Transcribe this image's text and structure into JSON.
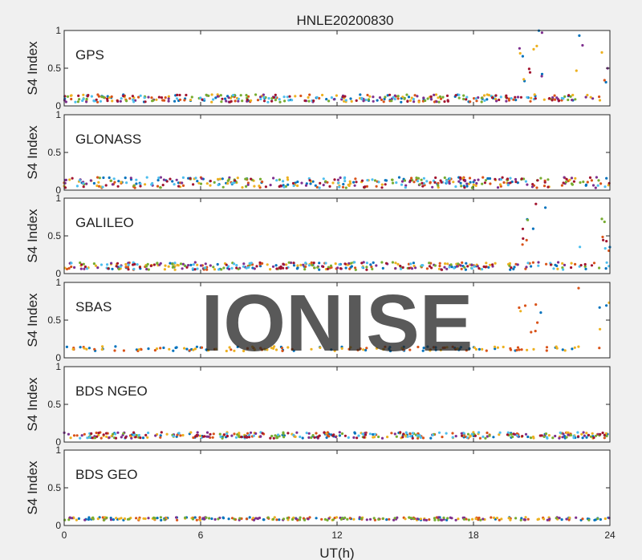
{
  "figure": {
    "title": "HNLE20200830",
    "xlabel": "UT(h)",
    "ylabel": "S4 Index",
    "watermark": "IONISE",
    "colors": {
      "background": "#f0f0f0",
      "axes_bg": "#ffffff",
      "axis": "#262626",
      "watermark": "#dcdcdc"
    },
    "palette": [
      "#0072bd",
      "#d95319",
      "#edb120",
      "#7e2f8e",
      "#77ac30",
      "#4dbeee",
      "#a2142f"
    ]
  },
  "chart_data": [
    {
      "type": "scatter",
      "panel": "GPS",
      "title": "GPS",
      "xlabel": "",
      "ylabel": "S4 Index",
      "xlim": [
        0,
        24
      ],
      "ylim": [
        0,
        1
      ],
      "xticks": [
        0,
        6,
        12,
        18,
        24
      ],
      "yticks": [
        0,
        0.5,
        1
      ],
      "show_xtick_labels": false,
      "grid": false,
      "baseline": 0.1,
      "spread": 0.05,
      "enhanced_windows": [
        [
          20.0,
          20.5,
          0.3,
          0.8
        ],
        [
          20.6,
          21.3,
          0.3,
          1.0
        ],
        [
          22.5,
          22.9,
          0.2,
          1.0
        ],
        [
          23.6,
          24.0,
          0.3,
          0.75
        ]
      ],
      "series_count": 7
    },
    {
      "type": "scatter",
      "panel": "GLONASS",
      "title": "GLONASS",
      "xlabel": "",
      "ylabel": "S4 Index",
      "xlim": [
        0,
        24
      ],
      "ylim": [
        0,
        1
      ],
      "xticks": [
        0,
        6,
        12,
        18,
        24
      ],
      "yticks": [
        0,
        0.5,
        1
      ],
      "show_xtick_labels": false,
      "grid": false,
      "baseline": 0.1,
      "spread": 0.07,
      "enhanced_windows": [],
      "series_count": 7
    },
    {
      "type": "scatter",
      "panel": "GALILEO",
      "title": "GALILEO",
      "xlabel": "",
      "ylabel": "S4 Index",
      "xlim": [
        0,
        24
      ],
      "ylim": [
        0,
        1
      ],
      "xticks": [
        0,
        6,
        12,
        18,
        24
      ],
      "yticks": [
        0,
        0.5,
        1
      ],
      "show_xtick_labels": false,
      "grid": false,
      "baseline": 0.1,
      "spread": 0.05,
      "enhanced_windows": [
        [
          20.0,
          20.5,
          0.3,
          0.8
        ],
        [
          20.6,
          21.3,
          0.3,
          1.0
        ],
        [
          22.5,
          22.9,
          0.2,
          1.0
        ],
        [
          23.6,
          24.0,
          0.3,
          0.75
        ]
      ],
      "series_count": 7
    },
    {
      "type": "scatter",
      "panel": "SBAS",
      "title": "SBAS",
      "xlabel": "",
      "ylabel": "S4 Index",
      "xlim": [
        0,
        24
      ],
      "ylim": [
        0,
        1
      ],
      "xticks": [
        0,
        6,
        12,
        18,
        24
      ],
      "yticks": [
        0,
        0.5,
        1
      ],
      "show_xtick_labels": false,
      "grid": false,
      "baseline": 0.12,
      "spread": 0.03,
      "enhanced_windows": [
        [
          20.0,
          20.6,
          0.3,
          0.75
        ],
        [
          20.7,
          21.1,
          0.3,
          1.0
        ],
        [
          22.5,
          22.8,
          0.3,
          1.0
        ],
        [
          23.5,
          24.0,
          0.3,
          0.8
        ]
      ],
      "series_count": 3
    },
    {
      "type": "scatter",
      "panel": "BDS NGEO",
      "title": "BDS NGEO",
      "xlabel": "",
      "ylabel": "S4 Index",
      "xlim": [
        0,
        24
      ],
      "ylim": [
        0,
        1
      ],
      "xticks": [
        0,
        6,
        12,
        18,
        24
      ],
      "yticks": [
        0,
        0.5,
        1
      ],
      "show_xtick_labels": false,
      "grid": false,
      "baseline": 0.09,
      "spread": 0.04,
      "enhanced_windows": [],
      "series_count": 7
    },
    {
      "type": "scatter",
      "panel": "BDS GEO",
      "title": "BDS GEO",
      "xlabel": "UT(h)",
      "ylabel": "S4 Index",
      "xlim": [
        0,
        24
      ],
      "ylim": [
        0,
        1
      ],
      "xticks": [
        0,
        6,
        12,
        18,
        24
      ],
      "yticks": [
        0,
        0.5,
        1
      ],
      "show_xtick_labels": true,
      "grid": false,
      "baseline": 0.09,
      "spread": 0.02,
      "enhanced_windows": [],
      "series_count": 5
    }
  ]
}
